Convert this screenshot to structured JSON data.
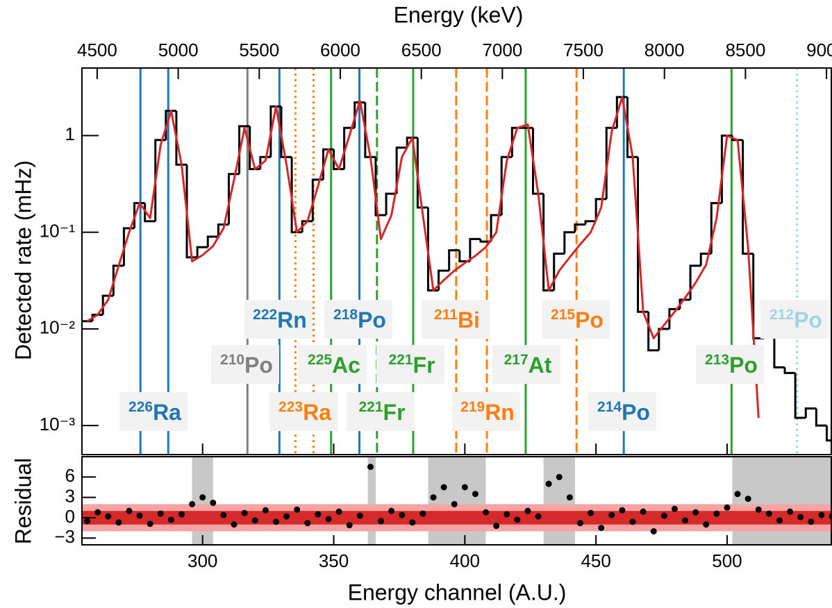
{
  "chart_data": {
    "type": "line",
    "title": "Energy (keV)",
    "y_label": "Detected rate (mHz)",
    "x_label": "Energy channel (A.U.)",
    "log_y": true,
    "xlim": [
      254,
      540
    ],
    "xticks": [
      300,
      350,
      400,
      450,
      500
    ],
    "x2lim": [
      4406,
      9034
    ],
    "x2ticks": [
      4500,
      5000,
      5500,
      6000,
      6500,
      7000,
      7500,
      8000,
      8500,
      9000
    ],
    "ylim": [
      0.0005,
      5
    ],
    "yticks": [
      {
        "value": 0.001,
        "label": "10⁻³"
      },
      {
        "value": 0.01,
        "label": "10⁻²"
      },
      {
        "value": 0.1,
        "label": "10⁻¹"
      },
      1
    ],
    "x": [
      256,
      260,
      264,
      268,
      272,
      276,
      280,
      284,
      288,
      292,
      296,
      300,
      304,
      308,
      312,
      316,
      320,
      324,
      328,
      332,
      336,
      340,
      344,
      348,
      352,
      356,
      360,
      364,
      368,
      372,
      376,
      380,
      384,
      388,
      392,
      396,
      400,
      404,
      408,
      412,
      416,
      420,
      424,
      428,
      432,
      436,
      440,
      444,
      448,
      452,
      456,
      460,
      464,
      468,
      472,
      476,
      480,
      484,
      488,
      492,
      496,
      500,
      504,
      508,
      512,
      516,
      520,
      524,
      528,
      532,
      536,
      540
    ],
    "series": [
      {
        "name": "data",
        "color": "#000000",
        "drawstyle": "steps",
        "values": [
          0.012,
          0.014,
          0.022,
          0.045,
          0.11,
          0.2,
          0.13,
          0.9,
          1.8,
          0.5,
          0.055,
          0.07,
          0.09,
          0.12,
          0.4,
          1.25,
          0.45,
          0.6,
          2.0,
          0.6,
          0.1,
          0.13,
          0.35,
          0.72,
          0.45,
          1.2,
          2.2,
          0.6,
          0.15,
          0.25,
          0.75,
          0.95,
          0.18,
          0.025,
          0.04,
          0.065,
          0.05,
          0.085,
          0.08,
          0.15,
          0.6,
          1.2,
          1.2,
          0.25,
          0.025,
          0.06,
          0.1,
          0.12,
          0.13,
          0.22,
          1.2,
          2.5,
          0.6,
          0.015,
          0.006,
          0.01,
          0.016,
          0.02,
          0.045,
          0.06,
          0.2,
          1.0,
          0.9,
          0.06,
          0.008,
          0.012,
          0.004,
          0.0035,
          0.0012,
          0.0015,
          0.001,
          0.0007
        ]
      },
      {
        "name": "fit",
        "color": "#d62728",
        "drawstyle": "line",
        "values": [
          0.012,
          0.014,
          0.02,
          0.045,
          0.1,
          0.2,
          0.14,
          0.8,
          1.8,
          0.5,
          0.05,
          0.058,
          0.072,
          0.11,
          0.35,
          1.2,
          0.45,
          0.55,
          2.0,
          0.5,
          0.1,
          0.13,
          0.3,
          0.72,
          0.45,
          1.0,
          2.3,
          0.6,
          0.085,
          0.15,
          0.6,
          0.95,
          0.15,
          0.025,
          0.032,
          0.04,
          0.048,
          0.057,
          0.07,
          0.1,
          0.55,
          1.2,
          1.3,
          0.25,
          0.025,
          0.04,
          0.055,
          0.075,
          0.1,
          0.18,
          1.1,
          2.5,
          0.6,
          0.015,
          0.008,
          0.011,
          0.015,
          0.021,
          0.03,
          0.046,
          0.14,
          1.0,
          0.9,
          0.07,
          0.0012,
          null,
          null,
          null,
          null,
          null,
          null,
          null
        ]
      }
    ],
    "lines": [
      {
        "x": 276.3,
        "color": "#1f77b4",
        "style": "solid"
      },
      {
        "x": 286.9,
        "color": "#1f77b4",
        "style": "solid"
      },
      {
        "x": 317.1,
        "color": "#7f7f7f",
        "style": "solid"
      },
      {
        "x": 329.3,
        "color": "#1f77b4",
        "style": "solid"
      },
      {
        "x": 335.4,
        "color": "#ff7f0e",
        "style": "dotted"
      },
      {
        "x": 342.3,
        "color": "#ff7f0e",
        "style": "dotted"
      },
      {
        "x": 349,
        "color": "#2ca02c",
        "style": "solid"
      },
      {
        "x": 359.8,
        "color": "#1f77b4",
        "style": "solid"
      },
      {
        "x": 366.5,
        "color": "#2ca02c",
        "style": "dashed"
      },
      {
        "x": 380.3,
        "color": "#2ca02c",
        "style": "solid"
      },
      {
        "x": 396.7,
        "color": "#ff7f0e",
        "style": "dashed"
      },
      {
        "x": 408.4,
        "color": "#ff7f0e",
        "style": "dashed"
      },
      {
        "x": 423.2,
        "color": "#2ca02c",
        "style": "solid"
      },
      {
        "x": 442.6,
        "color": "#ff7f0e",
        "style": "dashed"
      },
      {
        "x": 460.6,
        "color": "#1f77b4",
        "style": "solid"
      },
      {
        "x": 501.7,
        "color": "#2ca02c",
        "style": "solid"
      },
      {
        "x": 526.7,
        "color": "#9fd3e6",
        "style": "dotted"
      }
    ],
    "labels": [
      {
        "mass": "226",
        "element": "Ra",
        "color": "#1f77b4"
      },
      {
        "mass": "210",
        "element": "Po",
        "color": "#7f7f7f"
      },
      {
        "mass": "222",
        "element": "Rn",
        "color": "#1f77b4"
      },
      {
        "mass": "223",
        "element": "Ra",
        "color": "#ff7f0e"
      },
      {
        "mass": "225",
        "element": "Ac",
        "color": "#2ca02c"
      },
      {
        "mass": "218",
        "element": "Po",
        "color": "#1f77b4"
      },
      {
        "mass": "221",
        "element": "Fr",
        "color": "#2ca02c"
      },
      {
        "mass": "221",
        "element": "Fr",
        "color": "#2ca02c"
      },
      {
        "mass": "211",
        "element": "Bi",
        "color": "#ff7f0e"
      },
      {
        "mass": "219",
        "element": "Rn",
        "color": "#ff7f0e"
      },
      {
        "mass": "217",
        "element": "At",
        "color": "#2ca02c"
      },
      {
        "mass": "215",
        "element": "Po",
        "color": "#ff7f0e"
      },
      {
        "mass": "214",
        "element": "Po",
        "color": "#1f77b4"
      },
      {
        "mass": "213",
        "element": "Po",
        "color": "#2ca02c"
      },
      {
        "mass": "212",
        "element": "Po",
        "color": "#9fd3e6"
      }
    ],
    "residual": {
      "y_label": "Residual",
      "ylim": [
        -4,
        9
      ],
      "yticks": [
        {
          "value": -3,
          "label": "−3"
        },
        0,
        3,
        6
      ],
      "values": [
        -0.5,
        0.8,
        0.2,
        -0.7,
        1.0,
        0.3,
        -0.9,
        0.6,
        -0.3,
        0.5,
        2.0,
        3.0,
        2.2,
        0.4,
        -1.0,
        0.7,
        -0.4,
        1.1,
        -0.6,
        0.2,
        1.2,
        -0.8,
        0.5,
        -0.2,
        0.9,
        -1.1,
        0.3,
        7.5,
        -0.5,
        1.0,
        0.4,
        -0.7,
        0.6,
        3.0,
        4.5,
        2.0,
        4.5,
        3.5,
        0.8,
        -1.2,
        0.5,
        -0.3,
        1.0,
        0.2,
        5.0,
        6.0,
        3.0,
        -0.8,
        0.7,
        -1.5,
        0.4,
        1.1,
        -0.6,
        0.9,
        -2.0,
        0.3,
        1.3,
        -0.4,
        0.8,
        -1.0,
        0.6,
        1.5,
        3.5,
        2.8,
        1.2,
        0.6,
        -0.4,
        0.9,
        0.1,
        -0.6,
        0.4,
        0.2
      ],
      "bands": [
        {
          "range": [
            -2,
            2
          ],
          "color": "#f5a3a3"
        },
        {
          "range": [
            -1,
            1
          ],
          "color": "#d62a2a"
        }
      ],
      "excluded_ranges": [
        [
          296,
          304
        ],
        [
          363,
          366
        ],
        [
          386,
          408
        ],
        [
          430,
          442
        ],
        [
          502,
          540
        ]
      ],
      "excluded_color": "#c8c8c8"
    }
  }
}
